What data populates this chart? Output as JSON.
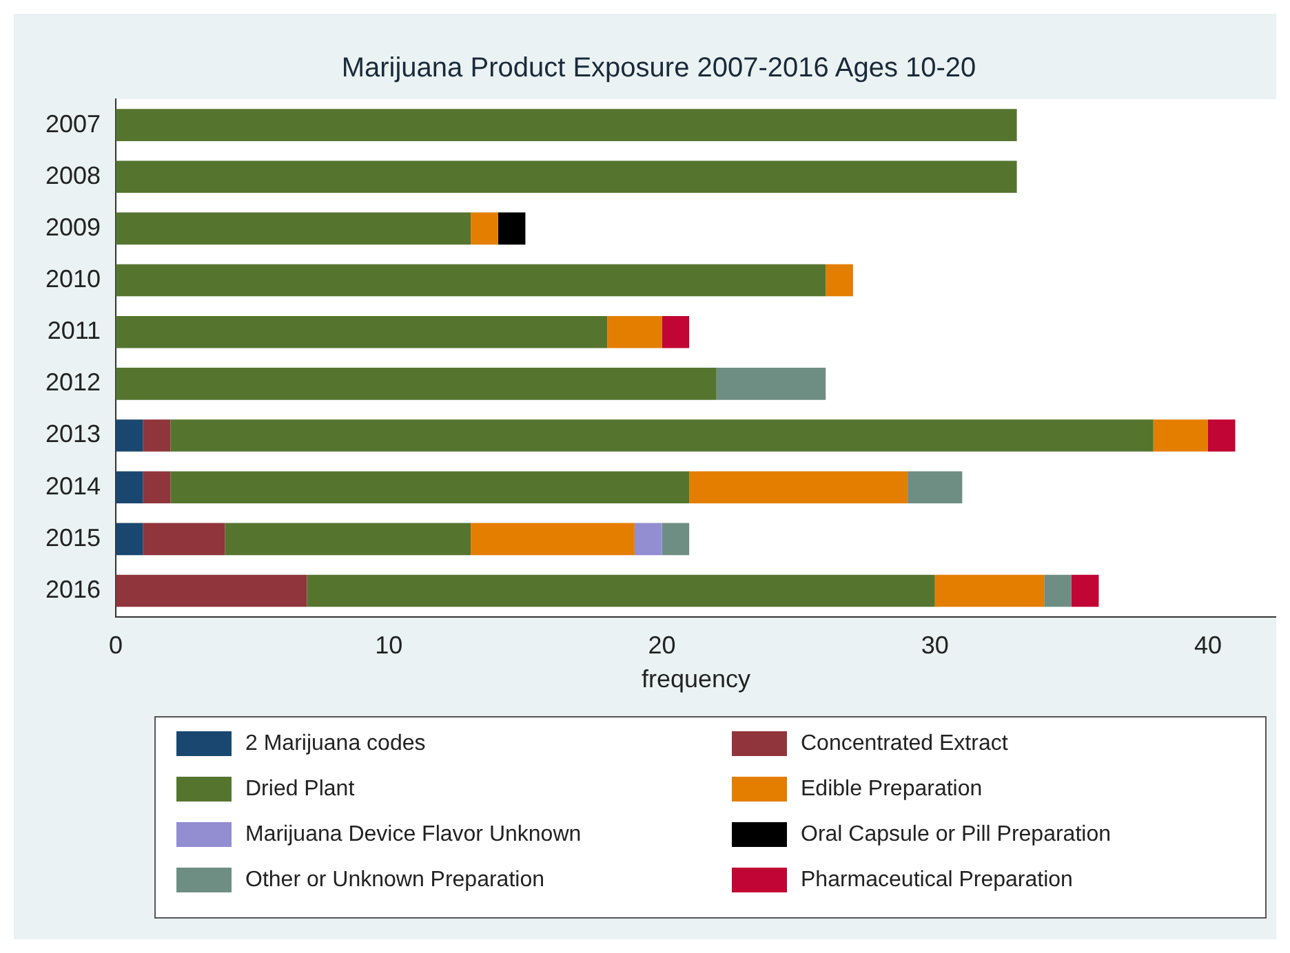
{
  "chart_data": {
    "type": "bar",
    "orientation": "horizontal",
    "stacked": true,
    "title": "Marijuana Product Exposure 2007-2016 Ages 10-20",
    "xlabel": "frequency",
    "categories": [
      "2007",
      "2008",
      "2009",
      "2010",
      "2011",
      "2012",
      "2013",
      "2014",
      "2015",
      "2016"
    ],
    "xlim": [
      0,
      42.5
    ],
    "xticks": [
      0,
      10,
      20,
      30,
      40
    ],
    "grid": false,
    "legend": "bottom",
    "series": [
      {
        "name": "2 Marijuana codes",
        "color": "#1a476f",
        "values": [
          0,
          0,
          0,
          0,
          0,
          0,
          1,
          1,
          1,
          0
        ]
      },
      {
        "name": "Concentrated Extract",
        "color": "#90353b",
        "values": [
          0,
          0,
          0,
          0,
          0,
          0,
          1,
          1,
          3,
          7
        ]
      },
      {
        "name": "Dried Plant",
        "color": "#55752f",
        "values": [
          33,
          33,
          13,
          26,
          18,
          22,
          36,
          19,
          9,
          23
        ]
      },
      {
        "name": "Edible Preparation",
        "color": "#e37e00",
        "values": [
          0,
          0,
          1,
          1,
          2,
          0,
          2,
          8,
          6,
          4
        ]
      },
      {
        "name": "Marijuana Device Flavor Unknown",
        "color": "#938dd2",
        "values": [
          0,
          0,
          0,
          0,
          0,
          0,
          0,
          0,
          1,
          0
        ]
      },
      {
        "name": "Oral Capsule or Pill Preparation",
        "color": "#000000",
        "values": [
          0,
          0,
          1,
          0,
          0,
          0,
          0,
          0,
          0,
          0
        ]
      },
      {
        "name": "Other or Unknown Preparation",
        "color": "#6e8e84",
        "values": [
          0,
          0,
          0,
          0,
          0,
          4,
          0,
          2,
          1,
          1
        ]
      },
      {
        "name": "Pharmaceutical Preparation",
        "color": "#c10534",
        "values": [
          0,
          0,
          0,
          0,
          1,
          0,
          1,
          0,
          0,
          1
        ]
      }
    ]
  }
}
